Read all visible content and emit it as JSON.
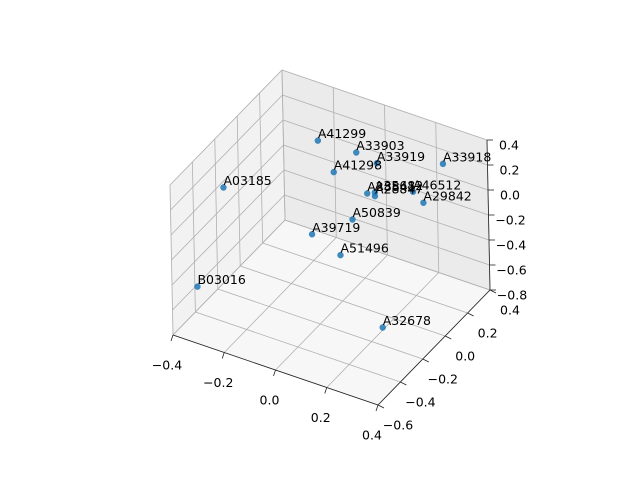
{
  "chart_data": {
    "type": "scatter3d",
    "labels": [
      "A41299",
      "A33903",
      "A33919",
      "A33918",
      "A41298",
      "A03185",
      "A35682",
      "A28841",
      "A28847",
      "A46512",
      "A29842",
      "A50839",
      "A39719",
      "A51496",
      "B03016",
      "A32678"
    ],
    "x": [
      -0.13,
      0.02,
      0.1,
      0.27,
      -0.07,
      -0.28,
      0.09,
      0.06,
      0.09,
      0.24,
      0.28,
      0.0,
      -0.16,
      -0.05,
      -0.39,
      0.2
    ],
    "y": [
      0.1,
      0.1,
      0.1,
      0.3,
      0.1,
      -0.4,
      0.1,
      0.1,
      0.1,
      0.1,
      0.1,
      0.1,
      0.1,
      0.1,
      -0.4,
      -0.1
    ],
    "z": [
      0.3,
      0.31,
      0.28,
      0.21,
      0.09,
      0.28,
      0.04,
      0.01,
      0.01,
      0.15,
      0.09,
      -0.24,
      -0.47,
      -0.56,
      -0.59,
      -0.78
    ],
    "color": "#1f77b4",
    "xlim": [
      -0.4,
      0.4
    ],
    "ylim": [
      -0.6,
      0.4
    ],
    "zlim": [
      -0.8,
      0.4
    ],
    "xticks": [
      {
        "value": -0.4,
        "label": "−0.4"
      },
      {
        "value": -0.2,
        "label": "−0.2"
      },
      {
        "value": 0,
        "label": "0.0"
      },
      0.2,
      0.4
    ],
    "yticks": [
      {
        "value": -0.6,
        "label": "−0.6"
      },
      {
        "value": -0.4,
        "label": "−0.4"
      },
      {
        "value": -0.2,
        "label": "−0.2"
      },
      {
        "value": 0,
        "label": "0.0"
      },
      0.2,
      0.4
    ],
    "zticks": [
      {
        "value": -0.8,
        "label": "−0.8"
      },
      {
        "value": -0.6,
        "label": "−0.6"
      },
      {
        "value": -0.4,
        "label": "−0.4"
      },
      {
        "value": -0.2,
        "label": "−0.2"
      },
      {
        "value": 0,
        "label": "0.0"
      },
      0.2,
      0.4
    ],
    "grid": true
  }
}
